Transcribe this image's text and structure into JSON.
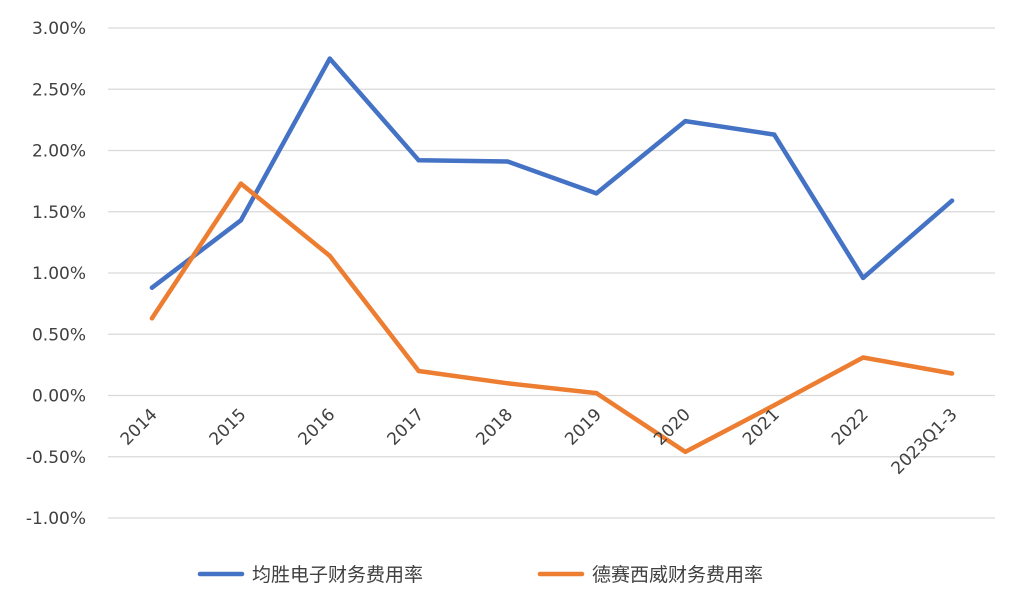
{
  "chart_data": {
    "type": "line",
    "title": "",
    "xlabel": "",
    "ylabel": "",
    "categories": [
      "2014",
      "2015",
      "2016",
      "2017",
      "2018",
      "2019",
      "2020",
      "2021",
      "2022",
      "2023Q1-3"
    ],
    "yticks": [
      "3.00%",
      "2.50%",
      "2.00%",
      "1.50%",
      "1.00%",
      "0.50%",
      "0.00%",
      "-0.50%",
      "-1.00%"
    ],
    "ytick_values": [
      3.0,
      2.5,
      2.0,
      1.5,
      1.0,
      0.5,
      0.0,
      -0.5,
      -1.0
    ],
    "ylim": [
      -1.0,
      3.0
    ],
    "grid": true,
    "legend_position": "bottom",
    "series": [
      {
        "name": "均胜电子财务费用率",
        "color": "#4472c4",
        "values": [
          0.88,
          1.43,
          2.75,
          1.92,
          1.91,
          1.65,
          2.24,
          2.13,
          0.96,
          1.59
        ]
      },
      {
        "name": "德赛西威财务费用率",
        "color": "#ed7d31",
        "values": [
          0.63,
          1.73,
          1.14,
          0.2,
          0.1,
          0.02,
          -0.46,
          -0.08,
          0.31,
          0.18
        ]
      }
    ]
  }
}
